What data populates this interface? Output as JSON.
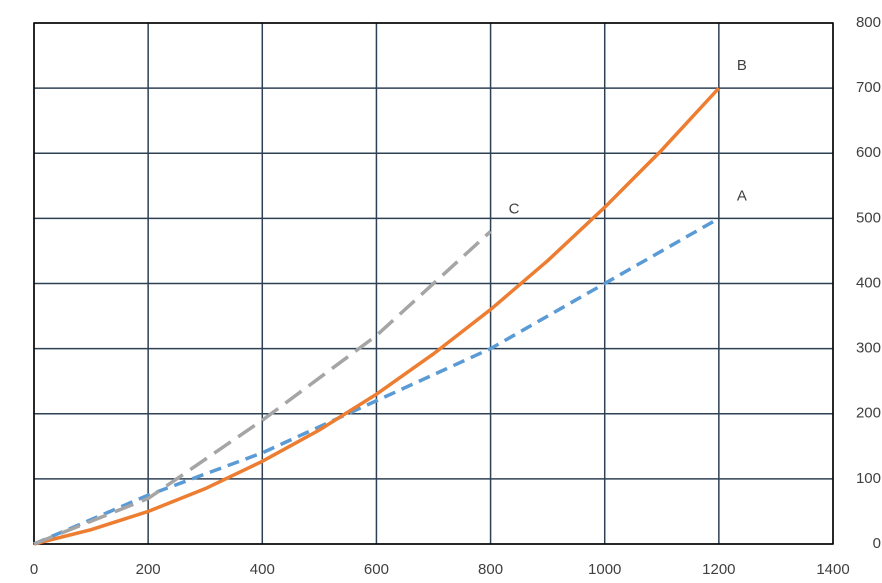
{
  "chart_data": {
    "type": "line",
    "xlim": [
      0,
      1400
    ],
    "xticks": [
      0,
      200,
      400,
      600,
      800,
      1000,
      1200,
      1400
    ],
    "ylim": [
      0,
      800
    ],
    "yticks": [
      0,
      100,
      200,
      300,
      400,
      500,
      600,
      700,
      800
    ],
    "grid": true,
    "y_axis_side": "right",
    "series": [
      {
        "name": "A",
        "color": "#5b9bd5",
        "dash": "12 7",
        "x": [
          0,
          200,
          400,
          600,
          800,
          1000,
          1200
        ],
        "values": [
          0,
          75,
          140,
          220,
          300,
          400,
          500
        ]
      },
      {
        "name": "B",
        "color": "#ed7d31",
        "dash": "none",
        "x": [
          0,
          100,
          200,
          300,
          400,
          500,
          600,
          700,
          800,
          900,
          1000,
          1100,
          1200
        ],
        "values": [
          0,
          22,
          50,
          85,
          127,
          175,
          230,
          292,
          360,
          435,
          517,
          605,
          700
        ]
      },
      {
        "name": "C",
        "color": "#a5a5a5",
        "dash": "20 9",
        "x": [
          0,
          200,
          400,
          600,
          800
        ],
        "values": [
          0,
          70,
          190,
          320,
          480
        ]
      }
    ]
  }
}
